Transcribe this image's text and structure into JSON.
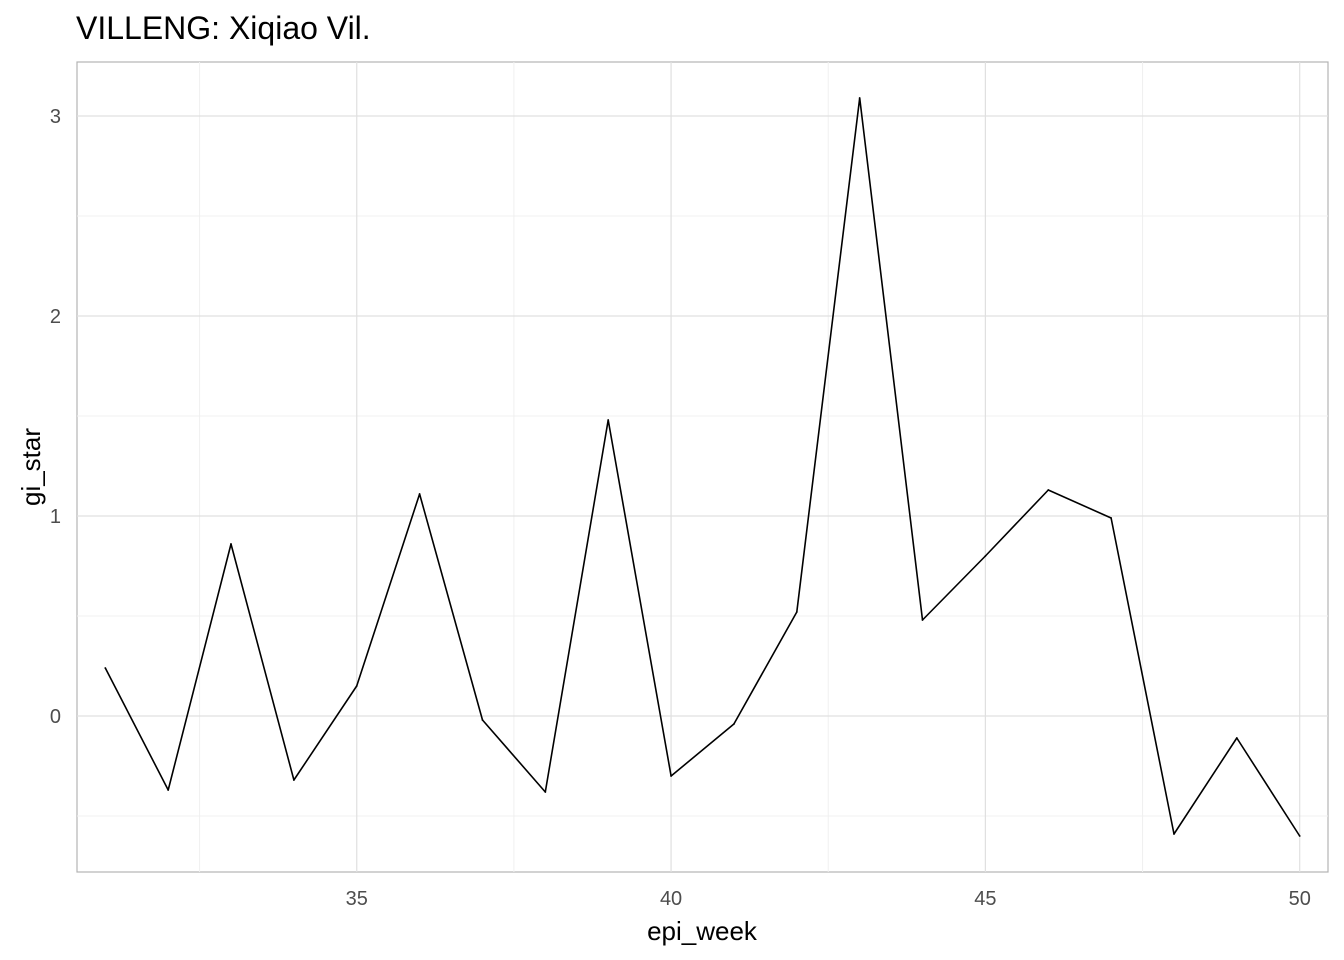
{
  "chart_data": {
    "type": "line",
    "title": "VILLENG: Xiqiao Vil.",
    "xlabel": "epi_week",
    "ylabel": "gi_star",
    "xlim": [
      30.55,
      50.45
    ],
    "ylim": [
      -0.78,
      3.27
    ],
    "x_ticks": [
      35,
      40,
      45,
      50
    ],
    "y_ticks": [
      0,
      1,
      2,
      3
    ],
    "x_tick_labels": [
      "35",
      "40",
      "45",
      "50"
    ],
    "y_tick_labels": [
      "0",
      "1",
      "2",
      "3"
    ],
    "grid": true,
    "legend": "none",
    "series": [
      {
        "color": "#000000",
        "x": [
          31,
          32,
          33,
          34,
          35,
          36,
          37,
          38,
          39,
          40,
          41,
          42,
          43,
          44,
          45,
          46,
          47,
          48,
          49,
          50
        ],
        "y": [
          0.24,
          -0.37,
          0.86,
          -0.32,
          0.15,
          1.11,
          -0.02,
          -0.38,
          1.48,
          -0.3,
          -0.04,
          0.52,
          3.09,
          0.48,
          0.8,
          1.13,
          0.99,
          -0.59,
          -0.11,
          -0.6
        ]
      }
    ]
  }
}
